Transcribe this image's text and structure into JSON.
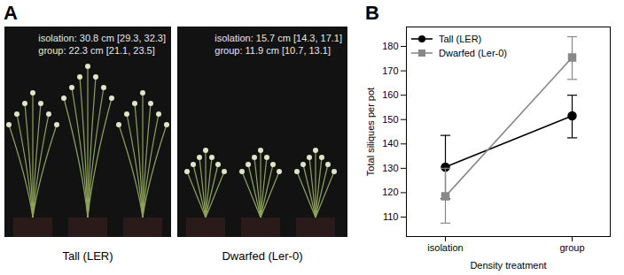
{
  "panel_labels": [
    "A",
    "B"
  ],
  "panel_a": {
    "images": [
      {
        "caption": "Tall (LER)",
        "lines": [
          "isolation: 30.8 cm [29.3, 32.3]",
          "group: 22.3 cm [21.1, 23.5]"
        ]
      },
      {
        "caption": "Dwarfed (Ler-0)",
        "lines": [
          "isolation: 15.7 cm [14.3, 17.1]",
          "group: 11.9 cm [10.7, 13.1]"
        ]
      }
    ]
  },
  "chart_data": {
    "type": "line",
    "xlabel": "Density treatment",
    "ylabel": "Total siliques per pot",
    "categories": [
      "isolation",
      "group"
    ],
    "series": [
      {
        "name": "Tall (LER)",
        "color": "#000000",
        "marker": "circle",
        "line_style": "solid",
        "values": [
          130.5,
          151.5
        ],
        "error_low": [
          117.5,
          142.5
        ],
        "error_high": [
          143.5,
          160
        ]
      },
      {
        "name": "Dwarfed (Ler-0)",
        "color": "#888888",
        "marker": "square",
        "line_style": "solid",
        "values": [
          118.5,
          175.5
        ],
        "error_low": [
          107.5,
          166.5
        ],
        "error_high": [
          130,
          184
        ]
      }
    ],
    "ylim": [
      102,
      188
    ],
    "yticks": [
      110,
      120,
      130,
      140,
      150,
      160,
      170,
      180
    ],
    "legend": "top-left"
  }
}
